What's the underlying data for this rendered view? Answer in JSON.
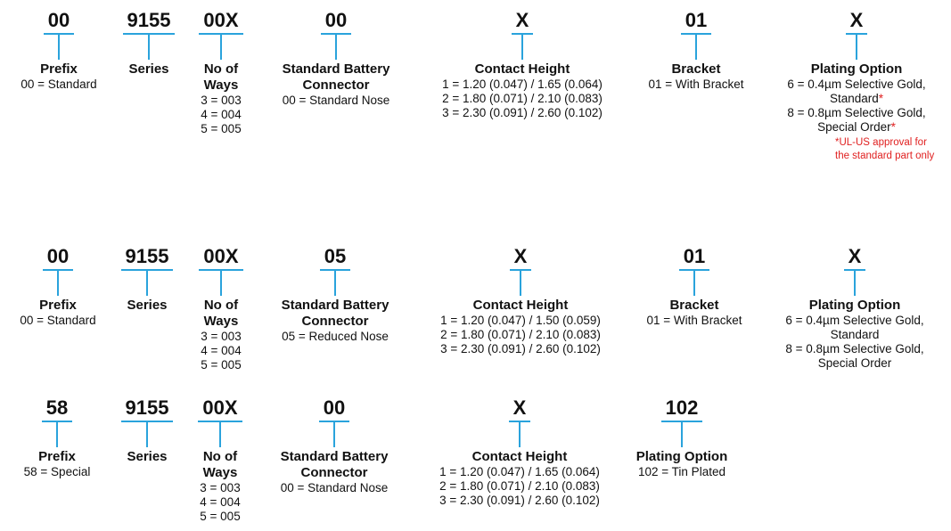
{
  "rows": [
    {
      "segments": [
        {
          "code": "00",
          "title": "Prefix",
          "lines": [
            "00 = Standard"
          ]
        },
        {
          "code": "9155",
          "title": "Series",
          "lines": []
        },
        {
          "code": "00X",
          "title": "No of Ways",
          "lines": [
            "3 = 003",
            "4 = 004",
            "5 = 005"
          ]
        },
        {
          "code": "00",
          "title": "Standard Battery Connector",
          "lines": [
            "00 = Standard Nose"
          ]
        },
        {
          "code": "X",
          "title": "Contact Height",
          "lines": [
            "1 = 1.20 (0.047) / 1.65 (0.064)",
            "2 = 1.80 (0.071) / 2.10 (0.083)",
            "3 = 2.30 (0.091) / 2.60 (0.102)"
          ]
        },
        {
          "code": "01",
          "title": "Bracket",
          "lines": [
            "01 = With Bracket"
          ]
        },
        {
          "code": "X",
          "title": "Plating Option",
          "lines": [
            "6 = 0.4µm Selective Gold,",
            {
              "text": "Standard",
              "mark": "*"
            },
            "8 = 0.8µm Selective Gold,",
            {
              "text": "Special Order",
              "mark": "*"
            }
          ],
          "note": "*UL-US approval for the standard part only"
        }
      ]
    },
    {
      "segments": [
        {
          "code": "00",
          "title": "Prefix",
          "lines": [
            "00 = Standard"
          ]
        },
        {
          "code": "9155",
          "title": "Series",
          "lines": []
        },
        {
          "code": "00X",
          "title": "No of Ways",
          "lines": [
            "3 = 003",
            "4 = 004",
            "5 = 005"
          ]
        },
        {
          "code": "05",
          "title": "Standard Battery Connector",
          "lines": [
            "05 = Reduced Nose"
          ]
        },
        {
          "code": "X",
          "title": "Contact Height",
          "lines": [
            "1 = 1.20 (0.047) / 1.50 (0.059)",
            "2 = 1.80 (0.071) / 2.10 (0.083)",
            "3 = 2.30 (0.091) / 2.60 (0.102)"
          ]
        },
        {
          "code": "01",
          "title": "Bracket",
          "lines": [
            "01 = With Bracket"
          ]
        },
        {
          "code": "X",
          "title": "Plating Option",
          "lines": [
            "6 = 0.4µm Selective Gold,",
            "Standard",
            "8 = 0.8µm Selective Gold,",
            "Special Order"
          ]
        }
      ]
    },
    {
      "segments": [
        {
          "code": "58",
          "title": "Prefix",
          "lines": [
            "58 = Special"
          ]
        },
        {
          "code": "9155",
          "title": "Series",
          "lines": []
        },
        {
          "code": "00X",
          "title": "No of Ways",
          "lines": [
            "3 = 003",
            "4 = 004",
            "5 = 005"
          ]
        },
        {
          "code": "00",
          "title": "Standard Battery Connector",
          "lines": [
            "00 = Standard Nose"
          ]
        },
        {
          "code": "X",
          "title": "Contact Height",
          "lines": [
            "1 = 1.20 (0.047) / 1.65 (0.064)",
            "2 = 1.80 (0.071) / 2.10 (0.083)",
            "3 = 2.30 (0.091) / 2.60 (0.102)"
          ]
        },
        {
          "code": "102",
          "title": "Plating Option",
          "lines": [
            "102 = Tin Plated"
          ]
        }
      ]
    }
  ]
}
